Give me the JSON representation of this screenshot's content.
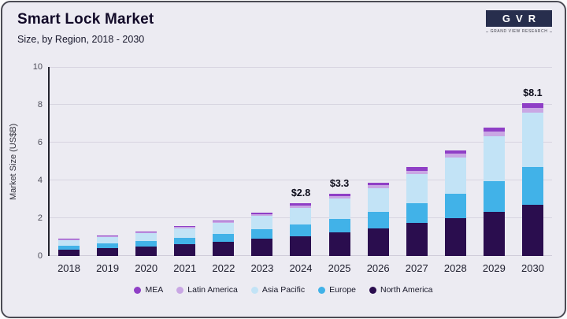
{
  "header": {
    "title": "Smart Lock Market",
    "subtitle": "Size, by Region, 2018 - 2030"
  },
  "logo": {
    "mark": "GVR",
    "text": "GRAND VIEW RESEARCH"
  },
  "chart_data": {
    "type": "bar",
    "stacked": true,
    "title": "Smart Lock Market",
    "subtitle": "Size, by Region, 2018 - 2030",
    "xlabel": "",
    "ylabel": "Market Size (US$B)",
    "ylim": [
      0,
      10
    ],
    "yticks": [
      0,
      2,
      4,
      6,
      8,
      10
    ],
    "grid": true,
    "legend_position": "bottom",
    "categories": [
      "2018",
      "2019",
      "2020",
      "2021",
      "2022",
      "2023",
      "2024",
      "2025",
      "2026",
      "2027",
      "2028",
      "2029",
      "2030"
    ],
    "series": [
      {
        "name": "North America",
        "color": "#2a0d4e",
        "values": [
          0.35,
          0.43,
          0.52,
          0.63,
          0.76,
          0.92,
          1.05,
          1.24,
          1.46,
          1.76,
          2.0,
          2.35,
          2.7
        ]
      },
      {
        "name": "Europe",
        "color": "#41b2e8",
        "values": [
          0.2,
          0.24,
          0.28,
          0.34,
          0.41,
          0.5,
          0.62,
          0.73,
          0.87,
          1.05,
          1.3,
          1.6,
          2.0
        ]
      },
      {
        "name": "Asia Pacific",
        "color": "#c2e3f6",
        "values": [
          0.27,
          0.33,
          0.4,
          0.49,
          0.58,
          0.7,
          0.89,
          1.06,
          1.26,
          1.52,
          1.9,
          2.4,
          2.9
        ]
      },
      {
        "name": "Latin America",
        "color": "#c9a7e4",
        "values": [
          0.04,
          0.05,
          0.05,
          0.07,
          0.07,
          0.09,
          0.11,
          0.13,
          0.15,
          0.18,
          0.2,
          0.22,
          0.25
        ]
      },
      {
        "name": "MEA",
        "color": "#8f3fc6",
        "values": [
          0.04,
          0.05,
          0.05,
          0.07,
          0.08,
          0.09,
          0.13,
          0.14,
          0.16,
          0.19,
          0.2,
          0.23,
          0.25
        ]
      }
    ],
    "legend": [
      "MEA",
      "Latin America",
      "Asia Pacific",
      "Europe",
      "North America"
    ],
    "annotations": [
      {
        "category": "2024",
        "label": "$2.8"
      },
      {
        "category": "2025",
        "label": "$3.3"
      },
      {
        "category": "2030",
        "label": "$8.1"
      }
    ],
    "totals": [
      0.9,
      1.1,
      1.3,
      1.6,
      1.9,
      2.3,
      2.8,
      3.3,
      3.9,
      4.7,
      5.6,
      6.8,
      8.1
    ]
  }
}
